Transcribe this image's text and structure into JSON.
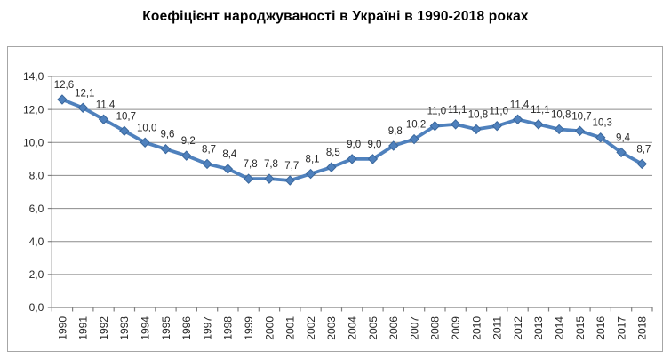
{
  "chart_data": {
    "type": "line",
    "title": "Коефіцієнт народжуваності в Україні в 1990-2018 роках",
    "categories": [
      "1990",
      "1991",
      "1992",
      "1993",
      "1994",
      "1995",
      "1996",
      "1997",
      "1998",
      "1999",
      "2000",
      "2001",
      "2002",
      "2003",
      "2004",
      "2005",
      "2006",
      "2007",
      "2008",
      "2009",
      "2010",
      "2011",
      "2012",
      "2013",
      "2014",
      "2015",
      "2016",
      "2017",
      "2018"
    ],
    "values": [
      12.6,
      12.1,
      11.4,
      10.7,
      10.0,
      9.6,
      9.2,
      8.7,
      8.4,
      7.8,
      7.8,
      7.7,
      8.1,
      8.5,
      9.0,
      9.0,
      9.8,
      10.2,
      11.0,
      11.1,
      10.8,
      11.0,
      11.4,
      11.1,
      10.8,
      10.7,
      10.3,
      9.4,
      8.7
    ],
    "xlabel": "",
    "ylabel": "",
    "ylim": [
      0,
      14
    ],
    "ytick_step": 2,
    "ytick_labels": [
      "0,0",
      "2,0",
      "4,0",
      "6,0",
      "8,0",
      "10,0",
      "12,0",
      "14,0"
    ],
    "decimal_separator": ",",
    "grid": true,
    "legend": "none",
    "data_labels": true,
    "marker": "diamond",
    "series_color": "#4F81BD",
    "marker_edge_color": "#3A679C",
    "grid_color": "#8C8C8C",
    "axis_color": "#808080",
    "text_color": "#262626",
    "border_color": "#A6A6A6"
  }
}
